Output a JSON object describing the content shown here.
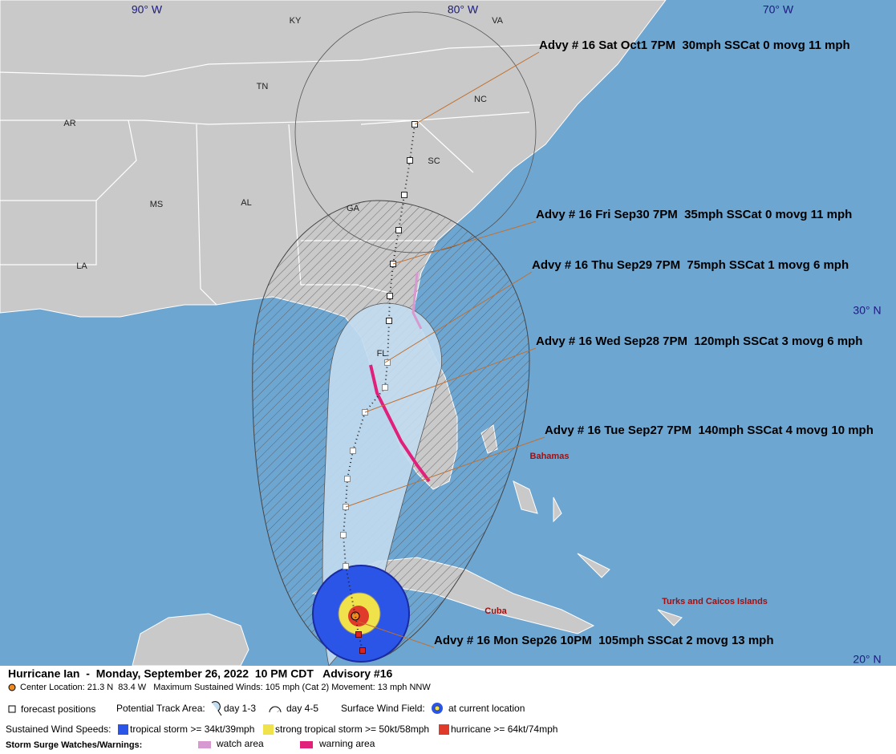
{
  "map": {
    "longitude_labels": [
      "90° W",
      "80° W",
      "70° W"
    ],
    "latitude_labels": [
      "30° N",
      "20° N"
    ],
    "state_labels": [
      "KY",
      "VA",
      "NC",
      "TN",
      "AR",
      "SC",
      "GA",
      "MS",
      "AL",
      "LA",
      "FL"
    ],
    "place_labels": [
      "Bahamas",
      "Cuba",
      "Turks and Caicos Islands"
    ],
    "advisories": [
      "Advy # 16 Sat Oct1 7PM  30mph SSCat 0 movg 11 mph",
      "Advy # 16 Fri Sep30 7PM  35mph SSCat 0 movg 11 mph",
      "Advy # 16 Thu Sep29 7PM  75mph SSCat 1 movg 6 mph",
      "Advy # 16 Wed Sep28 7PM  120mph SSCat 3 movg 6 mph",
      "Advy # 16 Tue Sep27 7PM  140mph SSCat 4 movg 10 mph",
      "Advy # 16 Mon Sep26 10PM  105mph SSCat 2 movg 13 mph"
    ]
  },
  "legend": {
    "title": "Hurricane Ian  -  Monday, September 26, 2022  10 PM CDT   Advisory #16",
    "center_info": "Center Location: 21.3 N  83.4 W   Maximum Sustained Winds: 105 mph (Cat 2) Movement: 13 mph NNW",
    "forecast_positions": "forecast positions",
    "track_area_label": "Potential Track Area:",
    "day_1_3": "day 1-3",
    "day_4_5": "day 4-5",
    "wind_field_label": "Surface Wind Field:",
    "current_location": "at current location",
    "wind_speeds_label": "Sustained Wind Speeds:",
    "tropical_storm": "tropical storm >= 34kt/39mph",
    "strong_tropical_storm": "strong tropical storm >= 50kt/58mph",
    "hurricane": "hurricane >= 64kt/74mph",
    "surge_label": "Storm Surge Watches/Warnings:",
    "watch_area": "watch area",
    "warning_area": "warning area"
  }
}
